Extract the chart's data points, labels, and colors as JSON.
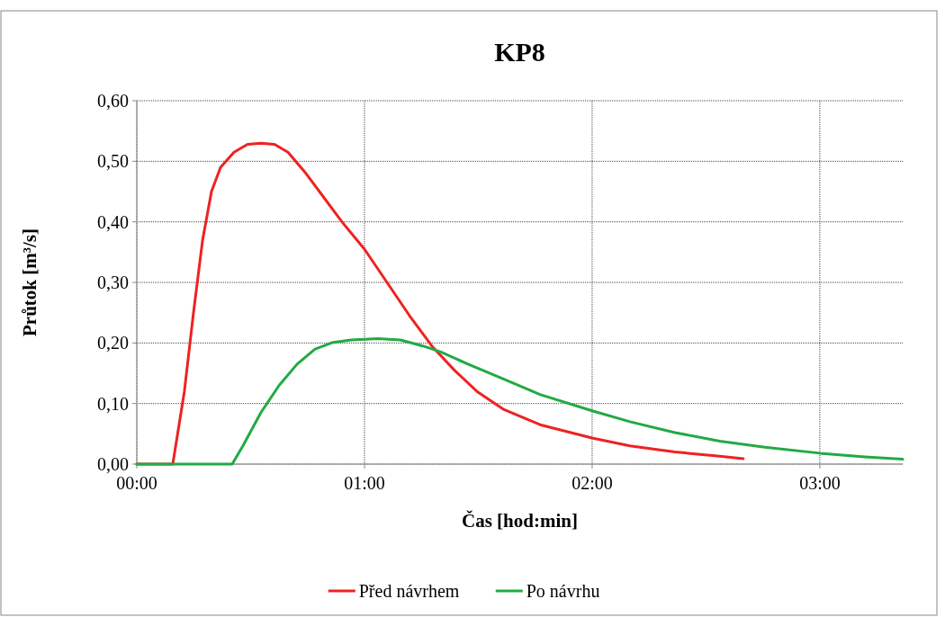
{
  "chart_data": {
    "type": "line",
    "title": "KP8",
    "xlabel": "Čas [hod:min]",
    "ylabel": "Průtok [m³/s]",
    "xlim": [
      0,
      3.364
    ],
    "xticks": [
      {
        "value": 0,
        "label": "00:00"
      },
      {
        "value": 1,
        "label": "01:00"
      },
      {
        "value": 2,
        "label": "02:00"
      },
      {
        "value": 3,
        "label": "03:00"
      }
    ],
    "ylim": [
      0,
      0.6
    ],
    "yticks": [
      {
        "value": 0,
        "label": "0,00"
      },
      {
        "value": 0.1,
        "label": "0,10"
      },
      {
        "value": 0.2,
        "label": "0,20"
      },
      {
        "value": 0.3,
        "label": "0,30"
      },
      {
        "value": 0.4,
        "label": "0,40"
      },
      {
        "value": 0.5,
        "label": "0,50"
      },
      {
        "value": 0.6,
        "label": "0,60"
      }
    ],
    "grid": true,
    "legend": "bottom",
    "marker": "none",
    "line_style": "solid",
    "series": [
      {
        "name": "Před návrhem",
        "color": "#ee2222",
        "x": [
          0,
          0.158,
          0.209,
          0.249,
          0.289,
          0.328,
          0.368,
          0.427,
          0.486,
          0.545,
          0.605,
          0.664,
          0.743,
          0.822,
          0.901,
          1.0,
          1.099,
          1.198,
          1.296,
          1.395,
          1.494,
          1.613,
          1.771,
          2.0,
          2.166,
          2.364,
          2.561,
          2.664
        ],
        "values": [
          0,
          0,
          0.12,
          0.25,
          0.37,
          0.45,
          0.49,
          0.515,
          0.528,
          0.53,
          0.528,
          0.515,
          0.48,
          0.44,
          0.4,
          0.355,
          0.3,
          0.245,
          0.195,
          0.155,
          0.12,
          0.09,
          0.065,
          0.043,
          0.03,
          0.02,
          0.013,
          0.009
        ]
      },
      {
        "name": "Po návrhu",
        "color": "#22aa44",
        "x": [
          0,
          0.419,
          0.466,
          0.545,
          0.625,
          0.704,
          0.783,
          0.862,
          0.941,
          1.059,
          1.158,
          1.257,
          1.336,
          1.455,
          1.613,
          1.771,
          2.0,
          2.166,
          2.364,
          2.561,
          2.759,
          3.0,
          3.198,
          3.364
        ],
        "values": [
          0,
          0,
          0.03,
          0.085,
          0.13,
          0.165,
          0.19,
          0.201,
          0.205,
          0.207,
          0.205,
          0.195,
          0.185,
          0.165,
          0.14,
          0.115,
          0.088,
          0.07,
          0.052,
          0.038,
          0.028,
          0.018,
          0.012,
          0.008
        ]
      }
    ]
  }
}
